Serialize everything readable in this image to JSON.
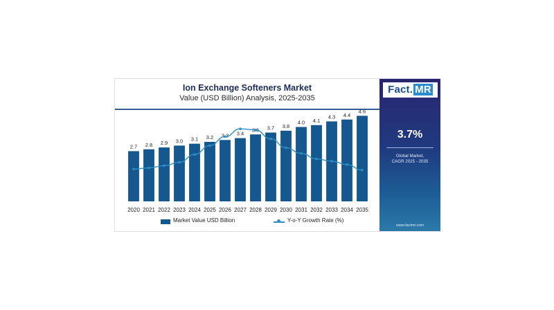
{
  "page": {
    "title": "Ion Exchange Softeners Market",
    "subtitle": "Value (USD Billion) Analysis, 2025-2035"
  },
  "sidebar": {
    "logo_fact": "Fact",
    "logo_sep": ".",
    "logo_mr": "MR",
    "cagr_value": "3.7%",
    "cagr_label_line1": "Global Market,",
    "cagr_label_line2": "CAGR 2025 - 2035",
    "website": "www.factmr.com"
  },
  "legend": {
    "bar_label": "Market Value USD Billion",
    "line_label": "Y-o-Y Growth Rate (%)"
  },
  "colors": {
    "bar": "#15578f",
    "line": "#2c8fc7",
    "title": "#1f2d5a"
  },
  "chart_data": {
    "type": "bar",
    "title": "Ion Exchange Softeners Market",
    "subtitle": "Value (USD Billion) Analysis, 2025-2035",
    "categories": [
      "2020",
      "2021",
      "2022",
      "2023",
      "2024",
      "2025",
      "2026",
      "2027",
      "2028",
      "2029",
      "2030",
      "2031",
      "2032",
      "2033",
      "2034",
      "2035"
    ],
    "series": [
      {
        "name": "Market Value USD Billion",
        "type": "bar",
        "values": [
          2.7,
          2.8,
          2.9,
          3.0,
          3.1,
          3.2,
          3.3,
          3.4,
          3.6,
          3.7,
          3.8,
          4.0,
          4.1,
          4.3,
          4.4,
          4.6
        ],
        "labels": [
          "2.7",
          "2.8",
          "2.9",
          "3.0",
          "3.1",
          "3.2",
          "3.3",
          "3.4",
          "3.6",
          "3.7",
          "3.8",
          "4.0",
          "4.1",
          "4.3",
          "4.4",
          "4.6"
        ]
      },
      {
        "name": "Y-o-Y Growth Rate (%)",
        "type": "line",
        "values": [
          2.9,
          3.0,
          3.2,
          3.5,
          4.2,
          5.0,
          5.8,
          6.5,
          6.4,
          5.6,
          4.8,
          4.3,
          3.8,
          3.6,
          3.3,
          2.8
        ]
      }
    ],
    "ylim": [
      0,
      4.8
    ],
    "y2lim": [
      0,
      8.0
    ],
    "grid": false,
    "legend_position": "bottom"
  }
}
